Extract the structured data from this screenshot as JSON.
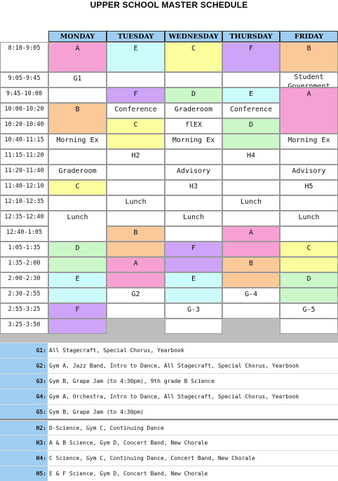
{
  "title": "UPPER SCHOOL MASTER SCHEDULE",
  "days": [
    "MONDAY",
    "TUESDAY",
    "WEDNESDAY",
    "THURSDAY",
    "FRIDAY"
  ],
  "times": [
    "8:10-9:05",
    "9:05-9:45",
    "9:45-10:00",
    "10:00-10:20",
    "10:20-10:40",
    "10:40-11:15",
    "11:15-11:20",
    "11:20-11:40",
    "11:40-12:10",
    "12:10-12:35",
    "12:35-12:40",
    "12:40-1:05",
    "1:05-1:35",
    "1:35-2:00",
    "2:00-2:30",
    "2:30-2:55",
    "2:55-3:25",
    "3:25-3:50"
  ],
  "colors": {
    "A": "#f7a0d4",
    "B": "#fbc898",
    "C": "#fcfd9c",
    "D": "#cbf7c9",
    "E": "#ccfbfb",
    "F": "#cda4f7",
    "white": "#ffffff",
    "header": "#9fcdf3",
    "gray": "#bdbdbd"
  },
  "blocks": [
    [
      {
        "text": "A",
        "start": 0,
        "end": 1,
        "color": "A"
      },
      {
        "text": "G1",
        "start": 1,
        "end": 2,
        "color": "white"
      },
      {
        "text": "",
        "start": 2,
        "end": 3,
        "color": "white"
      },
      {
        "text": "B",
        "start": 3,
        "end": 5,
        "color": "B"
      },
      {
        "text": "Morning Ex",
        "start": 5,
        "end": 6,
        "color": "white"
      },
      {
        "text": "",
        "start": 6,
        "end": 7,
        "color": "white"
      },
      {
        "text": "Graderoom",
        "start": 7,
        "end": 8,
        "color": "white"
      },
      {
        "text": "C",
        "start": 8,
        "end": 9,
        "color": "C"
      },
      {
        "text": "",
        "start": 9,
        "end": 10,
        "color": "white"
      },
      {
        "text": "Lunch",
        "start": 10,
        "end": 12,
        "color": "white"
      },
      {
        "text": "D",
        "start": 12,
        "end": 13,
        "color": "D"
      },
      {
        "text": "",
        "start": 13,
        "end": 14,
        "color": "D"
      },
      {
        "text": "E",
        "start": 14,
        "end": 15,
        "color": "E"
      },
      {
        "text": "",
        "start": 15,
        "end": 16,
        "color": "E"
      },
      {
        "text": "F",
        "start": 16,
        "end": 17,
        "color": "F"
      },
      {
        "text": "",
        "start": 17,
        "end": 18,
        "color": "F"
      }
    ],
    [
      {
        "text": "E",
        "start": 0,
        "end": 1,
        "color": "E"
      },
      {
        "text": "",
        "start": 1,
        "end": 2,
        "color": "white"
      },
      {
        "text": "F",
        "start": 2,
        "end": 3,
        "color": "F"
      },
      {
        "text": "Conference",
        "start": 3,
        "end": 4,
        "color": "white"
      },
      {
        "text": "C",
        "start": 4,
        "end": 5,
        "color": "C"
      },
      {
        "text": "",
        "start": 5,
        "end": 6,
        "color": "C"
      },
      {
        "text": "H2",
        "start": 6,
        "end": 7,
        "color": "white"
      },
      {
        "text": "",
        "start": 7,
        "end": 8,
        "color": "white"
      },
      {
        "text": "",
        "start": 8,
        "end": 9,
        "color": "white"
      },
      {
        "text": "Lunch",
        "start": 9,
        "end": 10,
        "color": "white"
      },
      {
        "text": "",
        "start": 10,
        "end": 11,
        "color": "white"
      },
      {
        "text": "B",
        "start": 11,
        "end": 12,
        "color": "B"
      },
      {
        "text": "",
        "start": 12,
        "end": 13,
        "color": "B"
      },
      {
        "text": "A",
        "start": 13,
        "end": 14,
        "color": "A"
      },
      {
        "text": "",
        "start": 14,
        "end": 15,
        "color": "A"
      },
      {
        "text": "G2",
        "start": 15,
        "end": 16,
        "color": "white"
      },
      {
        "text": "",
        "start": 16,
        "end": 17,
        "color": "white"
      }
    ],
    [
      {
        "text": "C",
        "start": 0,
        "end": 1,
        "color": "C"
      },
      {
        "text": "",
        "start": 1,
        "end": 2,
        "color": "white"
      },
      {
        "text": "D",
        "start": 2,
        "end": 3,
        "color": "D"
      },
      {
        "text": "Graderoom",
        "start": 3,
        "end": 4,
        "color": "white"
      },
      {
        "text": "flEX",
        "start": 4,
        "end": 5,
        "color": "white"
      },
      {
        "text": "Morning Ex",
        "start": 5,
        "end": 6,
        "color": "white"
      },
      {
        "text": "",
        "start": 6,
        "end": 7,
        "color": "white"
      },
      {
        "text": "Advisory",
        "start": 7,
        "end": 8,
        "color": "white"
      },
      {
        "text": "H3",
        "start": 8,
        "end": 9,
        "color": "white"
      },
      {
        "text": "",
        "start": 9,
        "end": 10,
        "color": "white"
      },
      {
        "text": "Lunch",
        "start": 10,
        "end": 11,
        "color": "white"
      },
      {
        "text": "",
        "start": 11,
        "end": 12,
        "color": "white"
      },
      {
        "text": "F",
        "start": 12,
        "end": 13,
        "color": "F"
      },
      {
        "text": "",
        "start": 13,
        "end": 14,
        "color": "F"
      },
      {
        "text": "E",
        "start": 14,
        "end": 15,
        "color": "E"
      },
      {
        "text": "",
        "start": 15,
        "end": 16,
        "color": "E"
      },
      {
        "text": "G-3",
        "start": 16,
        "end": 17,
        "color": "white"
      },
      {
        "text": "",
        "start": 17,
        "end": 18,
        "color": "white"
      }
    ],
    [
      {
        "text": "F",
        "start": 0,
        "end": 1,
        "color": "F"
      },
      {
        "text": "",
        "start": 1,
        "end": 2,
        "color": "white"
      },
      {
        "text": "E",
        "start": 2,
        "end": 3,
        "color": "E"
      },
      {
        "text": "Conference",
        "start": 3,
        "end": 4,
        "color": "white"
      },
      {
        "text": "D",
        "start": 4,
        "end": 5,
        "color": "D"
      },
      {
        "text": "",
        "start": 5,
        "end": 6,
        "color": "D"
      },
      {
        "text": "H4",
        "start": 6,
        "end": 7,
        "color": "white"
      },
      {
        "text": "",
        "start": 7,
        "end": 8,
        "color": "white"
      },
      {
        "text": "",
        "start": 8,
        "end": 9,
        "color": "white"
      },
      {
        "text": "Lunch",
        "start": 9,
        "end": 10,
        "color": "white"
      },
      {
        "text": "",
        "start": 10,
        "end": 11,
        "color": "white"
      },
      {
        "text": "A",
        "start": 11,
        "end": 12,
        "color": "A"
      },
      {
        "text": "",
        "start": 12,
        "end": 13,
        "color": "A"
      },
      {
        "text": "B",
        "start": 13,
        "end": 14,
        "color": "B"
      },
      {
        "text": "",
        "start": 14,
        "end": 15,
        "color": "B"
      },
      {
        "text": "G-4",
        "start": 15,
        "end": 16,
        "color": "white"
      },
      {
        "text": "",
        "start": 16,
        "end": 17,
        "color": "white"
      }
    ],
    [
      {
        "text": "B",
        "start": 0,
        "end": 1,
        "color": "B"
      },
      {
        "text": "Student Government",
        "start": 1,
        "end": 2,
        "color": "white",
        "wrap": true
      },
      {
        "text": "A",
        "start": 2,
        "end": 5,
        "color": "A"
      },
      {
        "text": "Morning Ex",
        "start": 5,
        "end": 6,
        "color": "white"
      },
      {
        "text": "",
        "start": 6,
        "end": 7,
        "color": "white"
      },
      {
        "text": "Advisory",
        "start": 7,
        "end": 8,
        "color": "white"
      },
      {
        "text": "H5",
        "start": 8,
        "end": 9,
        "color": "white"
      },
      {
        "text": "",
        "start": 9,
        "end": 10,
        "color": "white"
      },
      {
        "text": "Lunch",
        "start": 10,
        "end": 11,
        "color": "white"
      },
      {
        "text": "",
        "start": 11,
        "end": 12,
        "color": "white"
      },
      {
        "text": "C",
        "start": 12,
        "end": 13,
        "color": "C"
      },
      {
        "text": "",
        "start": 13,
        "end": 14,
        "color": "C"
      },
      {
        "text": "D",
        "start": 14,
        "end": 15,
        "color": "D"
      },
      {
        "text": "",
        "start": 15,
        "end": 16,
        "color": "D"
      },
      {
        "text": "G-5",
        "start": 16,
        "end": 17,
        "color": "white"
      },
      {
        "text": "",
        "start": 17,
        "end": 18,
        "color": "white"
      }
    ]
  ],
  "groups": [
    {
      "label": "G1:",
      "text": "All Stagecraft, Special Chorus, Yearbook"
    },
    {
      "label": "G2:",
      "text": "Gym A, Jazz Band, Intro to Dance, All Stagecraft, Special Chorus, Yearbook"
    },
    {
      "label": "G3:",
      "text": "Gym B, Grape Jam (to 4:30pm), 9th grade B Science"
    },
    {
      "label": "G4:",
      "text": "Gym A, Orchestra, Intro to Dance, All Stagecraft, Special Chorus, Yearbook"
    },
    {
      "label": "G5:",
      "text": "Gym B, Grape Jam (to 4:30pm)"
    }
  ],
  "h_groups": [
    {
      "label": "H2:",
      "text": "D-Science, Gym C, Continuing Dance"
    },
    {
      "label": "H3:",
      "text": "A & B Science, Gym D, Concert Band, New Chorale"
    },
    {
      "label": "H4:",
      "text": "C Science, Gym C, Continuing Dance, Concert Band, New Chorale"
    },
    {
      "label": "H5:",
      "text": "E & F Science, Gym D, Concert Band, New Chorale"
    }
  ]
}
